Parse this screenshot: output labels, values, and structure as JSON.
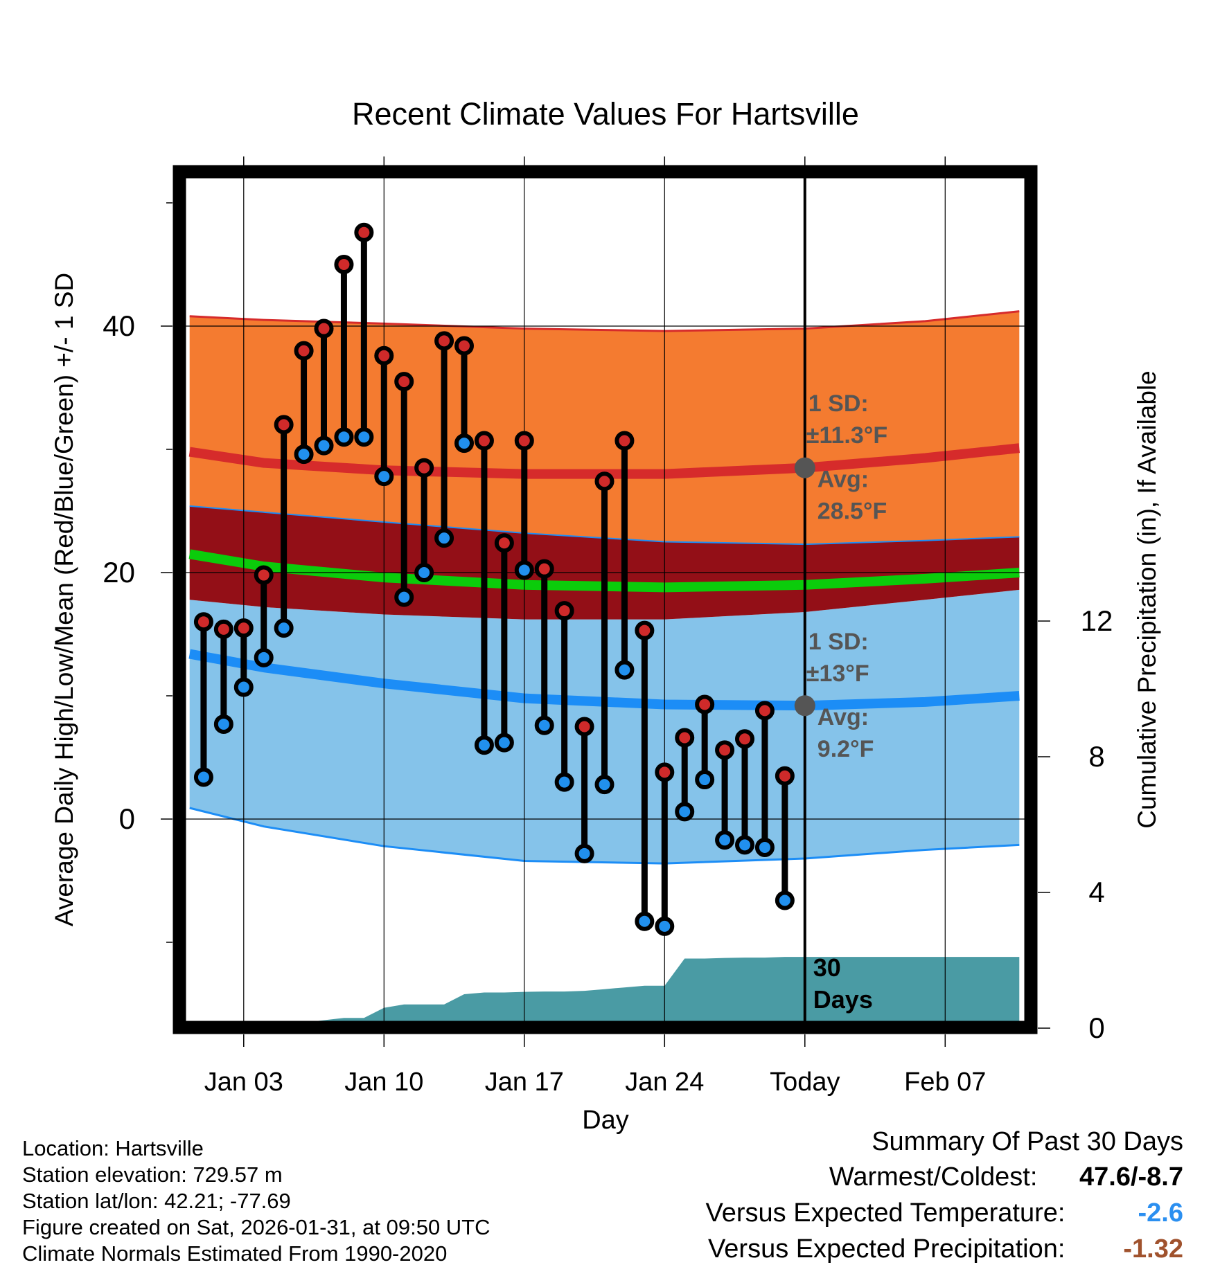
{
  "chart_data": {
    "type": "line",
    "title": "Recent Climate Values For Hartsville",
    "xlabel": "Day",
    "ylabel": "Average Daily High/Low/Mean (Red/Blue/Green) +/- 1 SD",
    "y2label": "Cumulative Precipitation (in), If Available",
    "x_range": [
      -1,
      41
    ],
    "ylim": [
      -16.5,
      52
    ],
    "y2lim": [
      -0.2,
      24.8
    ],
    "x_ticks": [
      {
        "x": 2,
        "label": "Jan 03"
      },
      {
        "x": 9,
        "label": "Jan 10"
      },
      {
        "x": 16,
        "label": "Jan 17"
      },
      {
        "x": 23,
        "label": "Jan 24"
      },
      {
        "x": 30,
        "label": "Today"
      },
      {
        "x": 37,
        "label": "Feb 07"
      }
    ],
    "y_ticks": [
      0,
      20,
      40
    ],
    "y_minor_ticks": [
      -10,
      10,
      30,
      50
    ],
    "y2_ticks": [
      0,
      4,
      8,
      12
    ],
    "today_x": 30,
    "normals": {
      "x": [
        -0.7,
        3,
        9,
        16,
        23,
        30,
        36,
        40.7
      ],
      "high_upper": [
        40.8,
        40.5,
        40.2,
        39.8,
        39.6,
        39.8,
        40.4,
        41.2
      ],
      "high_mean": [
        29.8,
        28.9,
        28.3,
        28.0,
        28.0,
        28.5,
        29.3,
        30.1
      ],
      "high_lower": [
        25.4,
        24.9,
        24.1,
        23.2,
        22.5,
        22.3,
        22.6,
        22.9
      ],
      "mean_mean": [
        21.5,
        20.5,
        19.6,
        19.0,
        18.8,
        19.0,
        19.5,
        20.0
      ],
      "low_upper": [
        17.8,
        17.2,
        16.6,
        16.2,
        16.2,
        16.8,
        17.8,
        18.6
      ],
      "low_mean": [
        13.4,
        12.3,
        11.0,
        9.8,
        9.3,
        9.2,
        9.5,
        10.0
      ],
      "low_lower": [
        0.9,
        -0.6,
        -2.2,
        -3.4,
        -3.6,
        -3.2,
        -2.5,
        -2.1
      ]
    },
    "high_sd_label": {
      "line1": "1 SD:",
      "line2": "±11.3°F",
      "avg_label": "Avg:",
      "avg_value": "28.5°F",
      "avg": 28.5
    },
    "low_sd_label": {
      "line1": "1 SD:",
      "line2": "±13°F",
      "avg_label": "Avg:",
      "avg_value": "9.2°F",
      "avg": 9.2
    },
    "days": [
      0,
      1,
      2,
      3,
      4,
      5,
      6,
      7,
      8,
      9,
      10,
      11,
      12,
      13,
      14,
      15,
      16,
      17,
      18,
      19,
      20,
      21,
      22,
      23,
      24,
      25,
      26,
      27,
      28,
      29
    ],
    "series": [
      {
        "name": "High",
        "values": [
          16.0,
          15.4,
          15.5,
          19.8,
          32.0,
          38.0,
          39.8,
          45.0,
          47.6,
          37.6,
          35.5,
          28.5,
          38.8,
          38.4,
          30.7,
          22.4,
          30.7,
          20.3,
          16.9,
          7.5,
          27.4,
          30.7,
          15.3,
          3.8,
          6.6,
          9.3,
          5.6,
          6.5,
          8.8,
          3.5
        ]
      },
      {
        "name": "Low",
        "values": [
          3.4,
          7.7,
          10.7,
          13.1,
          15.5,
          29.6,
          30.3,
          31.0,
          31.0,
          27.8,
          18.0,
          20.0,
          22.8,
          30.5,
          6.0,
          6.2,
          20.2,
          7.6,
          3.0,
          -2.8,
          2.8,
          12.1,
          -8.3,
          -8.7,
          0.6,
          3.2,
          -1.7,
          -2.1,
          -2.3,
          -6.6
        ]
      }
    ],
    "precip": {
      "label_line1": "30",
      "label_line2": "Days",
      "x": [
        -0.7,
        4.5,
        5.5,
        7.0,
        8.0,
        9.0,
        10.0,
        11.0,
        12.0,
        13.0,
        14.0,
        15.0,
        16.0,
        17.0,
        18.0,
        19.0,
        20.0,
        21.0,
        22.0,
        23.0,
        24.0,
        25.0,
        26.0,
        27.0,
        28.0,
        29.0,
        30.0,
        40.7
      ],
      "values": [
        0,
        0,
        0.2,
        0.3,
        0.3,
        0.6,
        0.7,
        0.7,
        0.7,
        1.0,
        1.05,
        1.05,
        1.07,
        1.08,
        1.08,
        1.1,
        1.15,
        1.2,
        1.25,
        1.25,
        2.05,
        2.05,
        2.07,
        2.08,
        2.08,
        2.1,
        2.1,
        2.1
      ]
    }
  },
  "info": {
    "location": "Location: Hartsville",
    "elevation": "Station elevation: 729.57 m",
    "latlon": "Station lat/lon: 42.21; -77.69",
    "created": "Figure created on Sat, 2026-01-31, at 09:50 UTC",
    "normals": "Climate Normals Estimated From 1990-2020"
  },
  "summary": {
    "title": "Summary Of Past 30 Days",
    "warm_cold_label": "Warmest/Coldest:",
    "warm_cold_value": "47.6/-8.7",
    "temp_label": "Versus Expected Temperature:",
    "temp_value": "-2.6",
    "precip_label": "Versus Expected Precipitation:",
    "precip_value": "-1.32"
  },
  "colors": {
    "high_band": "#f47b30",
    "high_line": "#d62b2b",
    "overlap_band": "#930f17",
    "mean_line": "#0bcc0b",
    "low_band": "#85c3ea",
    "low_line": "#1c8df6",
    "low_edge": "#1c8df6",
    "precip": "#4a9ba4",
    "high_marker": "#cf2a2a",
    "low_marker": "#2190ee",
    "label_gray": "#555555",
    "temp_value": "#2b8ff0",
    "precip_value": "#a0522d"
  }
}
